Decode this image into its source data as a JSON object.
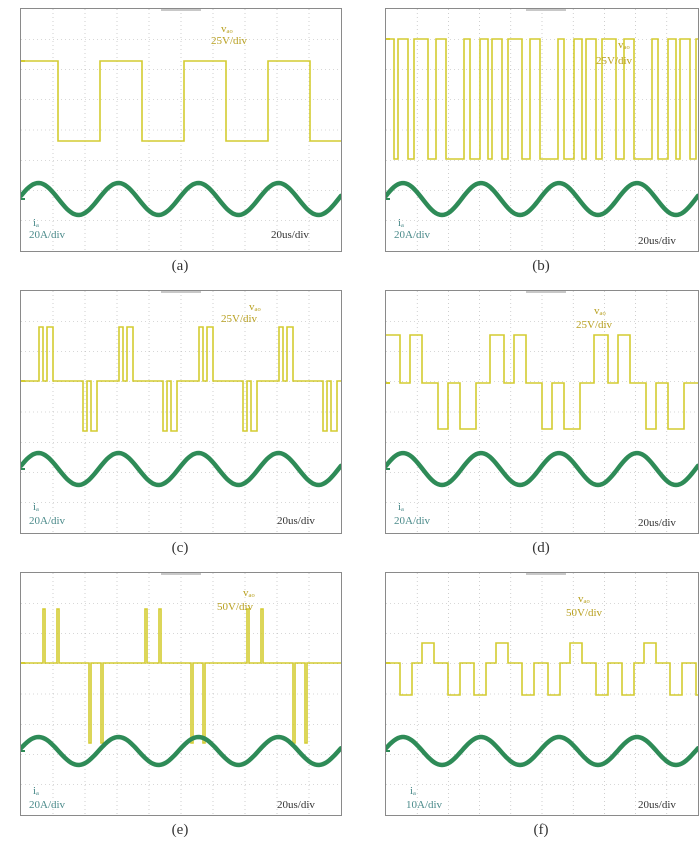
{
  "panels": [
    {
      "caption": "(a)",
      "v_label": "vₐₒ",
      "v_scale": "25V/div",
      "i_label": "iₐ",
      "i_scale": "20A/div",
      "t_scale": "20us/div"
    },
    {
      "caption": "(b)",
      "v_label": "vₐₒ",
      "v_scale": "25V/div",
      "i_label": "iₐ",
      "i_scale": "20A/div",
      "t_scale": "20us/div"
    },
    {
      "caption": "(c)",
      "v_label": "vₐₒ",
      "v_scale": "25V/div",
      "i_label": "iₐ",
      "i_scale": "20A/div",
      "t_scale": "20us/div"
    },
    {
      "caption": "(d)",
      "v_label": "vₐₒ",
      "v_scale": "25V/div",
      "i_label": "iₐ",
      "i_scale": "20A/div",
      "t_scale": "20us/div"
    },
    {
      "caption": "(e)",
      "v_label": "vₐₒ",
      "v_scale": "50V/div",
      "i_label": "iₐ",
      "i_scale": "20A/div",
      "t_scale": "20us/div"
    },
    {
      "caption": "(f)",
      "v_label": "vₐₒ",
      "v_scale": "50V/div",
      "i_label": "iₐ",
      "i_scale": "10A/div",
      "t_scale": "20us/div"
    }
  ],
  "colors": {
    "voltage_trace": "#d4cc30",
    "current_trace": "#2e8b57",
    "grid": "#b0b0b0",
    "frame": "#8a8a8a"
  },
  "chart_data": [
    {
      "type": "line",
      "panel": "(a)",
      "series": [
        {
          "name": "voltage",
          "shape": "two-level square wave",
          "v_scale": "25V/div"
        },
        {
          "name": "current",
          "shape": "sinusoid",
          "i_scale": "20A/div"
        }
      ],
      "time_scale": "20us/div",
      "grid": "dotted"
    },
    {
      "type": "line",
      "panel": "(b)",
      "series": [
        {
          "name": "voltage",
          "shape": "multi-pulse two-level waveform",
          "v_scale": "25V/div"
        },
        {
          "name": "current",
          "shape": "sinusoid",
          "i_scale": "20A/div"
        }
      ],
      "time_scale": "20us/div",
      "grid": "dotted"
    },
    {
      "type": "line",
      "panel": "(c)",
      "series": [
        {
          "name": "voltage",
          "shape": "three-level pulses",
          "v_scale": "25V/div"
        },
        {
          "name": "current",
          "shape": "sinusoid",
          "i_scale": "20A/div"
        }
      ],
      "time_scale": "20us/div",
      "grid": "dotted"
    },
    {
      "type": "line",
      "panel": "(d)",
      "series": [
        {
          "name": "voltage",
          "shape": "three-level multi-step",
          "v_scale": "25V/div"
        },
        {
          "name": "current",
          "shape": "sinusoid",
          "i_scale": "20A/div"
        }
      ],
      "time_scale": "20us/div",
      "grid": "dotted"
    },
    {
      "type": "line",
      "panel": "(e)",
      "series": [
        {
          "name": "voltage",
          "shape": "narrow spikes around zero",
          "v_scale": "50V/div"
        },
        {
          "name": "current",
          "shape": "sinusoid",
          "i_scale": "20A/div"
        }
      ],
      "time_scale": "20us/div",
      "grid": "dotted"
    },
    {
      "type": "line",
      "panel": "(f)",
      "series": [
        {
          "name": "voltage",
          "shape": "three-level square pulses",
          "v_scale": "50V/div"
        },
        {
          "name": "current",
          "shape": "sinusoid",
          "i_scale": "10A/div"
        }
      ],
      "time_scale": "20us/div",
      "grid": "dotted"
    }
  ]
}
